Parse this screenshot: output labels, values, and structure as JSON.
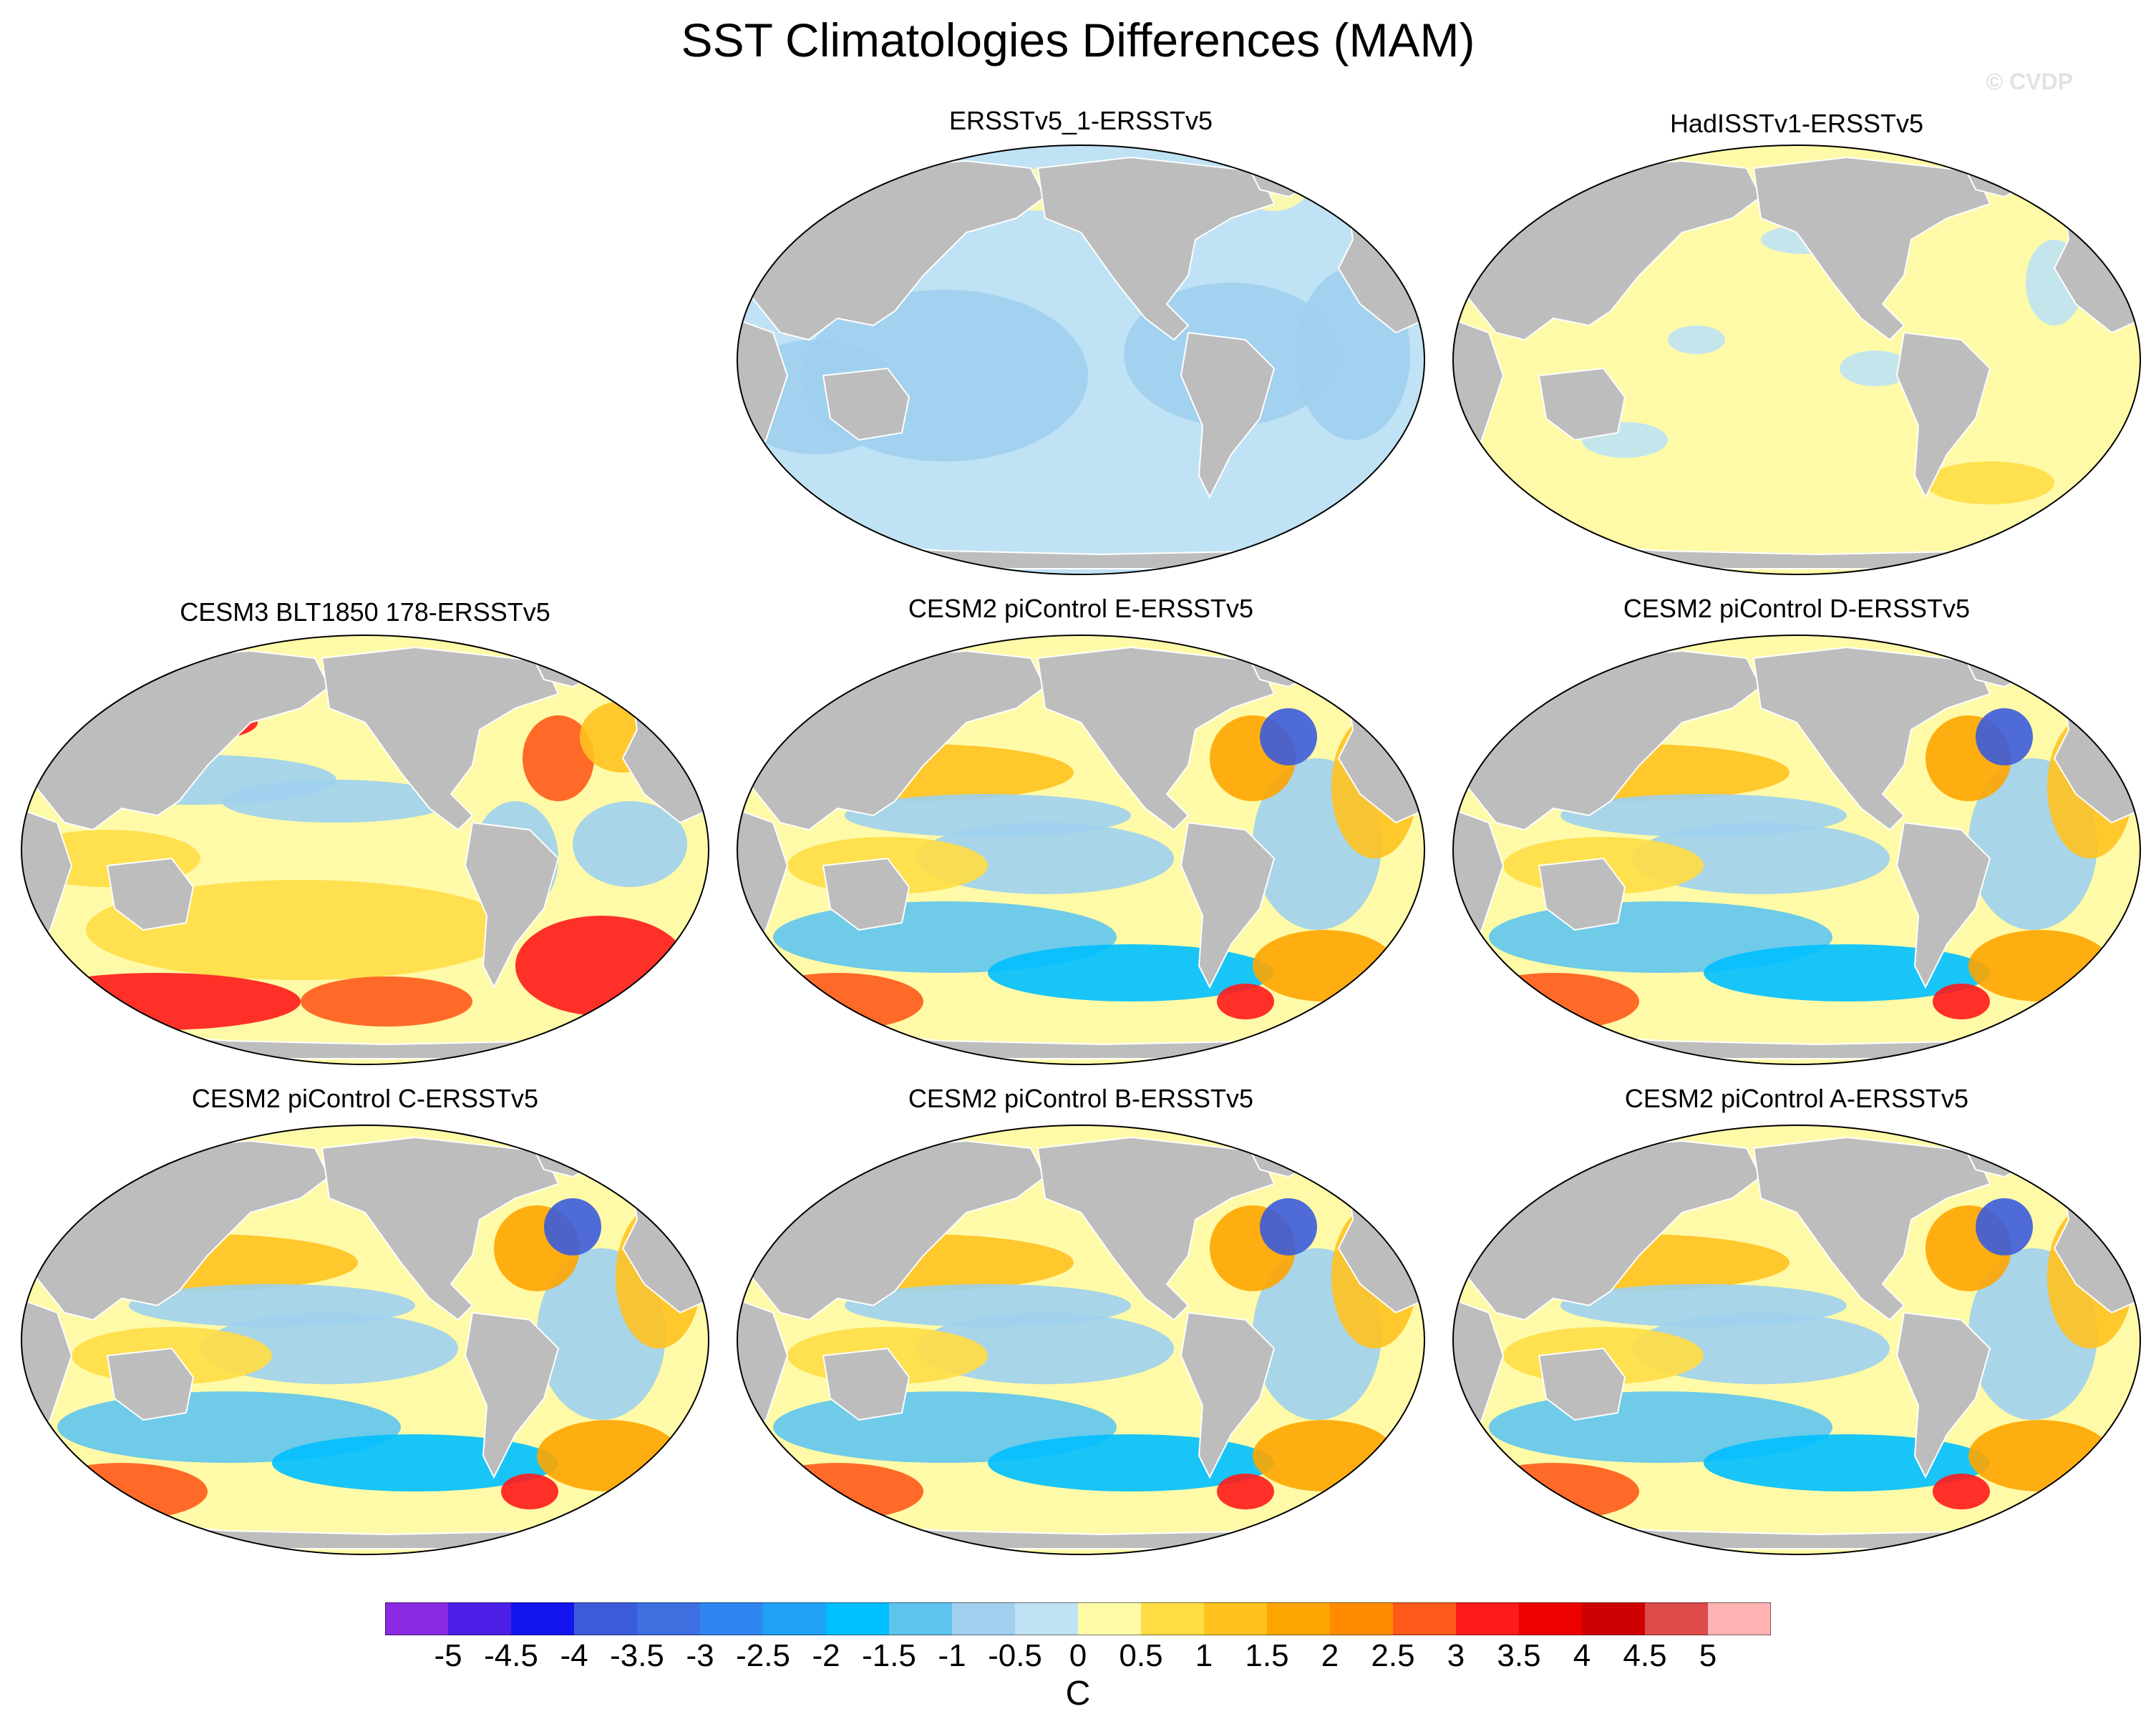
{
  "title": "SST Climatologies Differences (MAM)",
  "watermark": "© CVDP",
  "panels": [
    {
      "label": "ERSSTv5_1-ERSSTv5",
      "pattern": "uniform-cool"
    },
    {
      "label": "HadISSTv1-ERSSTv5",
      "pattern": "uniform-warm"
    },
    {
      "label": "CESM3 BLT1850 178-ERSSTv5",
      "pattern": "model-warm-south"
    },
    {
      "label": "CESM2 piControl E-ERSSTv5",
      "pattern": "model"
    },
    {
      "label": "CESM2 piControl D-ERSSTv5",
      "pattern": "model"
    },
    {
      "label": "CESM2 piControl C-ERSSTv5",
      "pattern": "model"
    },
    {
      "label": "CESM2 piControl B-ERSSTv5",
      "pattern": "model"
    },
    {
      "label": "CESM2 piControl A-ERSSTv5",
      "pattern": "model"
    }
  ],
  "colorbar": {
    "units": "C",
    "colors": [
      "#8a2be2",
      "#4b1fe6",
      "#1414f0",
      "#3b5bdb",
      "#3d6fe0",
      "#2f86f0",
      "#1fa2f5",
      "#00bfff",
      "#5fc5ee",
      "#9fd0ee",
      "#bfe2f4",
      "#fffaa8",
      "#ffdd44",
      "#ffc21f",
      "#ffa500",
      "#ff8c00",
      "#ff5a1a",
      "#ff1a1a",
      "#ee0000",
      "#cc0000",
      "#dd4a4a",
      "#ffb3b3"
    ],
    "labels": [
      "-5",
      "-4.5",
      "-4",
      "-3.5",
      "-3",
      "-2.5",
      "-2",
      "-1.5",
      "-1",
      "-0.5",
      "0",
      "0.5",
      "1",
      "1.5",
      "2",
      "2.5",
      "3",
      "3.5",
      "4",
      "4.5",
      "5"
    ]
  }
}
